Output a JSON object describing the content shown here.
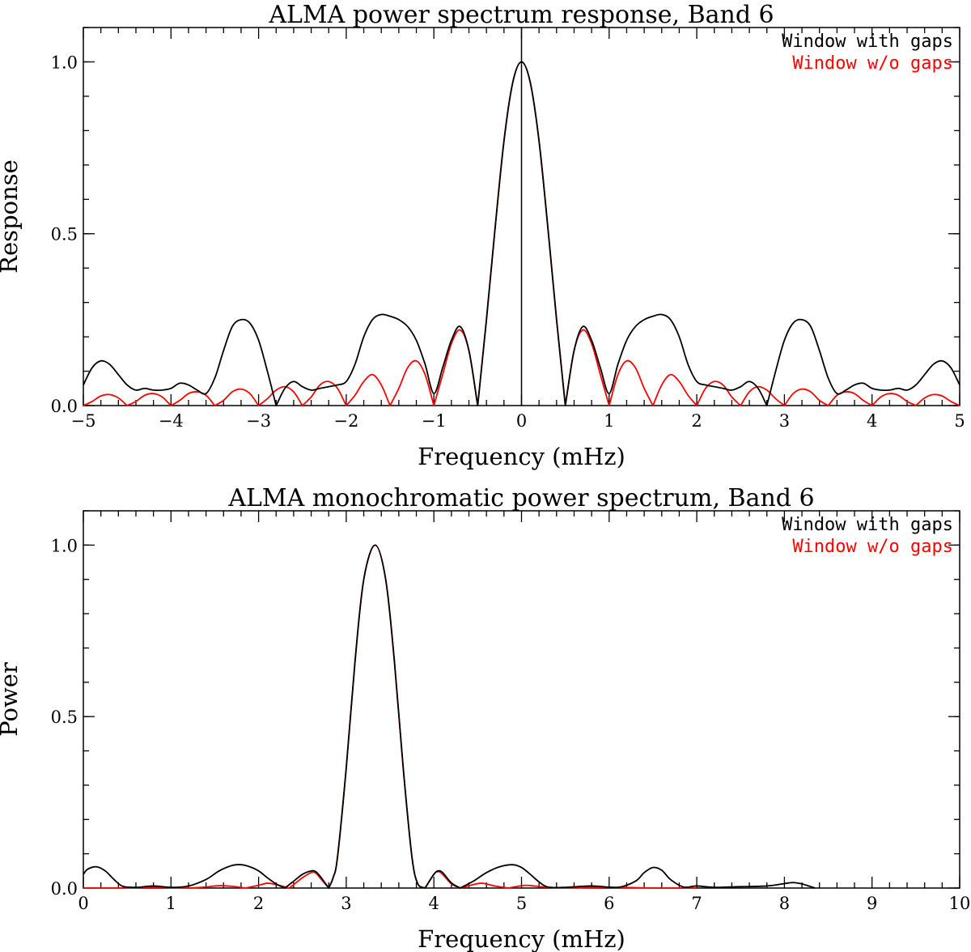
{
  "chart_data": [
    {
      "type": "line",
      "title": "ALMA power spectrum response, Band 6",
      "xlabel": "Frequency (mHz)",
      "ylabel": "Response",
      "xlim": [
        -5,
        5
      ],
      "ylim": [
        0,
        1.1
      ],
      "xticks": [
        "−5",
        "−4",
        "−3",
        "−2",
        "−1",
        "0",
        "1",
        "2",
        "3",
        "4",
        "5"
      ],
      "yticks": [
        "0.0",
        "0.5",
        "1.0"
      ],
      "legend_position": "top-right",
      "vertical_line_x": 0,
      "series": [
        {
          "name": "Window with gaps",
          "color": "#000000",
          "x": [
            0,
            0.1,
            0.2,
            0.3,
            0.4,
            0.5,
            0.6,
            0.7,
            0.8,
            0.9,
            1.0,
            1.1,
            1.2,
            1.3,
            1.4,
            1.5,
            1.6,
            1.7,
            1.8,
            1.9,
            2.0,
            2.1,
            2.2,
            2.3,
            2.4,
            2.5,
            2.6,
            2.7,
            2.8,
            2.9,
            3.0,
            3.1,
            3.2,
            3.3,
            3.4,
            3.5,
            3.6,
            3.7,
            3.8,
            3.9,
            4.0,
            4.1,
            4.2,
            4.3,
            4.4,
            4.5,
            4.6,
            4.7,
            4.8,
            4.9,
            5.0
          ],
          "y": [
            1.0,
            0.94,
            0.77,
            0.52,
            0.25,
            0.0,
            0.16,
            0.23,
            0.19,
            0.11,
            0.035,
            0.12,
            0.19,
            0.23,
            0.25,
            0.26,
            0.265,
            0.25,
            0.2,
            0.12,
            0.07,
            0.06,
            0.055,
            0.05,
            0.045,
            0.055,
            0.07,
            0.05,
            0.0,
            0.1,
            0.19,
            0.24,
            0.25,
            0.23,
            0.16,
            0.08,
            0.035,
            0.045,
            0.06,
            0.065,
            0.05,
            0.045,
            0.045,
            0.05,
            0.045,
            0.06,
            0.09,
            0.12,
            0.13,
            0.11,
            0.06
          ]
        },
        {
          "name": "Window w/o gaps",
          "color": "#ff0000",
          "x": [
            0,
            0.1,
            0.2,
            0.3,
            0.4,
            0.5,
            0.6,
            0.7,
            0.8,
            0.9,
            1.0,
            1.1,
            1.2,
            1.3,
            1.4,
            1.5,
            1.6,
            1.7,
            1.8,
            1.9,
            2.0,
            2.1,
            2.2,
            2.3,
            2.4,
            2.5,
            2.6,
            2.7,
            2.8,
            2.9,
            3.0,
            3.1,
            3.2,
            3.3,
            3.4,
            3.5,
            3.6,
            3.7,
            3.8,
            3.9,
            4.0,
            4.1,
            4.2,
            4.3,
            4.4,
            4.5,
            4.6,
            4.7,
            4.8,
            4.9,
            5.0
          ],
          "y": [
            1.0,
            0.94,
            0.77,
            0.52,
            0.25,
            0.0,
            0.16,
            0.22,
            0.18,
            0.09,
            0.0,
            0.09,
            0.13,
            0.11,
            0.05,
            0.0,
            0.06,
            0.09,
            0.07,
            0.03,
            0.0,
            0.05,
            0.07,
            0.06,
            0.025,
            0.0,
            0.04,
            0.055,
            0.045,
            0.02,
            0.0,
            0.035,
            0.048,
            0.04,
            0.015,
            0.0,
            0.03,
            0.04,
            0.035,
            0.015,
            0.0,
            0.025,
            0.035,
            0.03,
            0.012,
            0.0,
            0.022,
            0.032,
            0.028,
            0.012,
            0.0
          ]
        }
      ]
    },
    {
      "type": "line",
      "title": "ALMA monochromatic power spectrum, Band 6",
      "xlabel": "Frequency (mHz)",
      "ylabel": "Power",
      "xlim": [
        0,
        10
      ],
      "ylim": [
        0,
        1.1
      ],
      "xticks": [
        "0",
        "1",
        "2",
        "3",
        "4",
        "5",
        "6",
        "7",
        "8",
        "9",
        "10"
      ],
      "yticks": [
        "0.0",
        "0.5",
        "1.0"
      ],
      "legend_position": "top-right",
      "series": [
        {
          "name": "Window with gaps",
          "color": "#000000",
          "x": [
            0,
            0.05,
            0.15,
            0.25,
            0.35,
            0.45,
            0.6,
            0.8,
            1.0,
            1.2,
            1.4,
            1.55,
            1.7,
            1.8,
            1.9,
            2.0,
            2.1,
            2.2,
            2.3,
            2.4,
            2.5,
            2.6,
            2.65,
            2.7,
            2.8,
            2.85,
            2.9,
            3.0,
            3.1,
            3.2,
            3.33,
            3.45,
            3.55,
            3.65,
            3.75,
            3.82,
            3.9,
            4.0,
            4.05,
            4.1,
            4.2,
            4.3,
            4.45,
            4.6,
            4.75,
            4.9,
            5.0,
            5.1,
            5.2,
            5.3,
            5.5,
            5.8,
            6.1,
            6.3,
            6.4,
            6.5,
            6.6,
            6.7,
            6.85,
            7.0,
            7.2,
            7.5,
            7.8,
            8.0,
            8.1,
            8.2,
            8.35
          ],
          "y": [
            0.04,
            0.055,
            0.062,
            0.05,
            0.025,
            0.005,
            0.002,
            0.006,
            0.002,
            0.006,
            0.025,
            0.05,
            0.066,
            0.068,
            0.062,
            0.05,
            0.03,
            0.012,
            0.0,
            0.02,
            0.04,
            0.05,
            0.048,
            0.035,
            0.0,
            0.03,
            0.09,
            0.35,
            0.66,
            0.9,
            1.0,
            0.9,
            0.66,
            0.35,
            0.09,
            0.01,
            0.0,
            0.04,
            0.05,
            0.045,
            0.015,
            0.0,
            0.02,
            0.045,
            0.062,
            0.068,
            0.06,
            0.04,
            0.018,
            0.003,
            0.002,
            0.006,
            0.002,
            0.02,
            0.045,
            0.06,
            0.052,
            0.025,
            0.003,
            0.006,
            0.002,
            0.004,
            0.006,
            0.013,
            0.016,
            0.012,
            0.0
          ]
        },
        {
          "name": "Window w/o gaps",
          "color": "#ff0000",
          "x": [
            0,
            0.4,
            0.8,
            1.2,
            1.4,
            1.55,
            1.7,
            1.85,
            2.0,
            2.1,
            2.2,
            2.35,
            2.5,
            2.6,
            2.65,
            2.7,
            2.8,
            2.85,
            2.9,
            3.0,
            3.1,
            3.2,
            3.33,
            3.45,
            3.55,
            3.65,
            3.75,
            3.82,
            3.9,
            4.0,
            4.05,
            4.1,
            4.2,
            4.3,
            4.45,
            4.55,
            4.7,
            4.85,
            5.05,
            5.25,
            5.5,
            6.0,
            6.5,
            7.0
          ],
          "y": [
            0.0,
            0.0,
            0.002,
            0.0,
            0.003,
            0.007,
            0.005,
            0.0,
            0.008,
            0.014,
            0.01,
            0.0,
            0.03,
            0.045,
            0.044,
            0.03,
            0.0,
            0.03,
            0.09,
            0.35,
            0.66,
            0.9,
            1.0,
            0.9,
            0.66,
            0.35,
            0.09,
            0.01,
            0.0,
            0.04,
            0.048,
            0.04,
            0.012,
            0.0,
            0.01,
            0.014,
            0.006,
            0.0,
            0.008,
            0.003,
            0.0,
            0.002,
            0.0,
            0.0
          ]
        }
      ]
    }
  ]
}
